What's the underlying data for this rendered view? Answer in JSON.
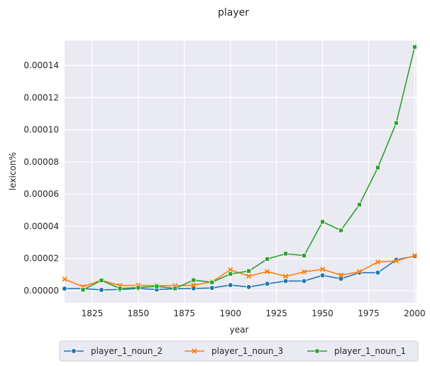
{
  "chart_data": {
    "type": "line",
    "title": "player",
    "xlabel": "year",
    "ylabel": "lexicon%",
    "xlim": [
      1810,
      2001
    ],
    "ylim": [
      -7.5e-06,
      0.0001555
    ],
    "xticks": [
      1825,
      1850,
      1875,
      1900,
      1925,
      1950,
      1975,
      2000
    ],
    "xtick_labels": [
      "1825",
      "1850",
      "1875",
      "1900",
      "1925",
      "1950",
      "1975",
      "2000"
    ],
    "yticks": [
      0,
      2e-05,
      4e-05,
      6e-05,
      8e-05,
      0.0001,
      0.00012,
      0.00014
    ],
    "ytick_labels": [
      "0.00000",
      "0.00002",
      "0.00004",
      "0.00006",
      "0.00008",
      "0.00010",
      "0.00012",
      "0.00014"
    ],
    "grid": true,
    "legend_position": "bottom-center",
    "x": [
      1810,
      1820,
      1830,
      1840,
      1850,
      1860,
      1870,
      1880,
      1890,
      1900,
      1910,
      1920,
      1930,
      1940,
      1950,
      1960,
      1970,
      1980,
      1990,
      2000
    ],
    "series": [
      {
        "name": "player_1_noun_2",
        "color": "#1f77b4",
        "marker": "circle",
        "values": [
          1.3e-06,
          1.3e-06,
          5e-07,
          7e-07,
          1.4e-06,
          7e-07,
          1.2e-06,
          1.4e-06,
          1.7e-06,
          3.5e-06,
          2.3e-06,
          4.3e-06,
          6e-06,
          6e-06,
          9.5e-06,
          7.4e-06,
          1.12e-05,
          1.12e-05,
          1.92e-05,
          2.15e-05
        ]
      },
      {
        "name": "player_1_noun_3",
        "color": "#ff7f0e",
        "marker": "x",
        "values": [
          7.2e-06,
          2.5e-06,
          6.5e-06,
          3.2e-06,
          3.3e-06,
          3.2e-06,
          3e-06,
          3.4e-06,
          5.5e-06,
          1.3e-05,
          9e-06,
          1.19e-05,
          8.9e-06,
          1.17e-05,
          1.33e-05,
          9.7e-06,
          1.18e-05,
          1.78e-05,
          1.85e-05,
          2.18e-05
        ]
      },
      {
        "name": "player_1_noun_1",
        "color": "#2ca02c",
        "marker": "square",
        "values": [
          null,
          6e-07,
          6.4e-06,
          1.4e-06,
          1.9e-06,
          2.7e-06,
          1.4e-06,
          6.6e-06,
          5.2e-06,
          1.04e-05,
          1.22e-05,
          1.97e-05,
          2.3e-05,
          2.18e-05,
          4.28e-05,
          3.75e-05,
          5.35e-05,
          7.65e-05,
          0.0001042,
          0.0001515
        ]
      }
    ]
  }
}
